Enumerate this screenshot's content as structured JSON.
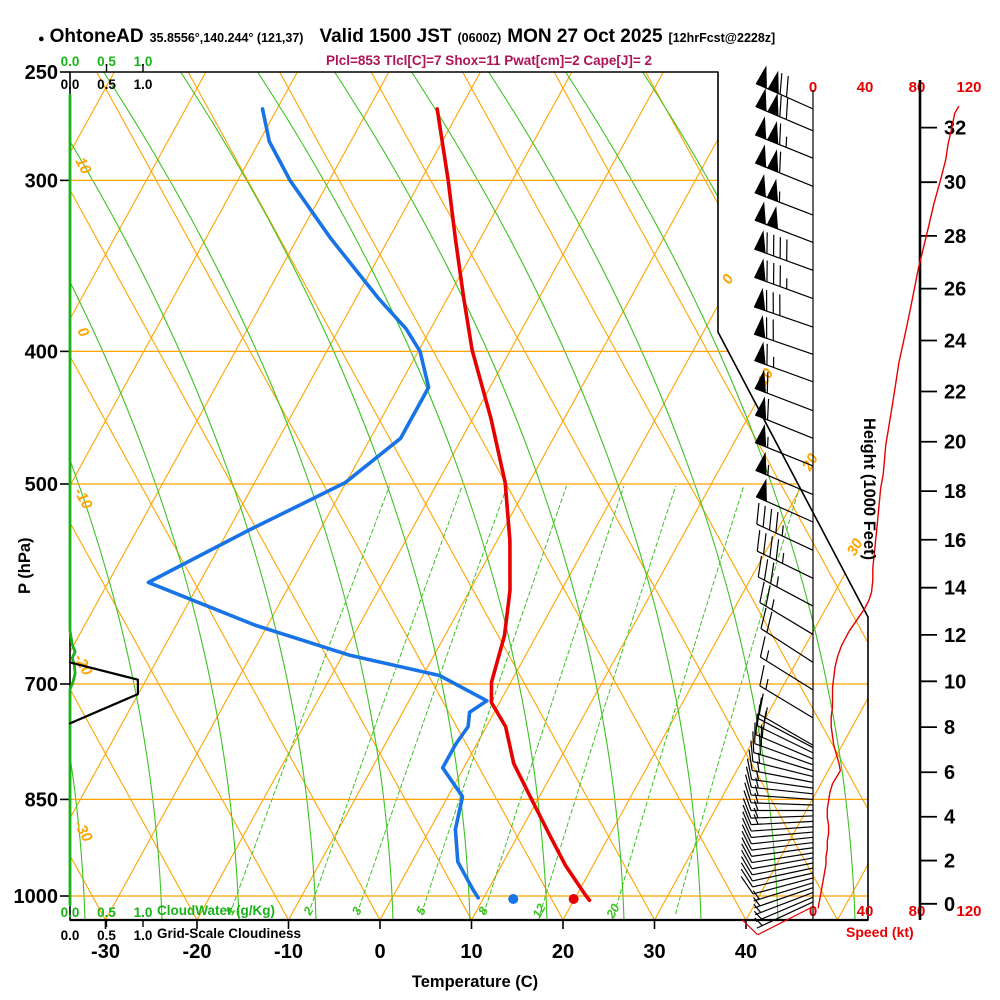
{
  "header": {
    "bullet": "●",
    "station": "OhtoneAD",
    "coords": "35.8556°,140.244° (121,37)",
    "valid": "Valid 1500 JST",
    "valid_z": "(0600Z)",
    "valid_date": "MON 27 Oct 2025",
    "fcst_tag": "[12hrFcst@2228z]",
    "params": "Plcl=853 Tlcl[C]=7 Shox=11 Pwat[cm]=2 Cape[J]= 2"
  },
  "axes": {
    "pressure": {
      "label": "P (hPa)",
      "ticks": [
        250,
        300,
        400,
        500,
        700,
        850,
        1000
      ]
    },
    "temperature": {
      "label": "Temperature (C)",
      "ticks": [
        -30,
        -20,
        -10,
        0,
        10,
        20,
        30,
        40
      ]
    },
    "height": {
      "label": "Height (1000 Feet)",
      "ticks": [
        0,
        2,
        4,
        6,
        8,
        10,
        12,
        14,
        16,
        18,
        20,
        22,
        24,
        26,
        28,
        30,
        32
      ]
    },
    "speed": {
      "label": "Speed (kt)",
      "ticks": [
        0,
        40,
        80,
        120
      ]
    },
    "cloudwater": {
      "label": "CloudWater (g/Kg)",
      "ticks": [
        "0.0",
        "0.5",
        "1.0"
      ]
    },
    "cloudiness": {
      "label": "Grid-Scale Cloudiness",
      "ticks": [
        "0.0",
        "0.5",
        "1.0"
      ]
    }
  },
  "colors": {
    "grid_orange": "#FFA400",
    "grid_green": "#3CC224",
    "temp_red": "#E60000",
    "dew_blue": "#1773E6",
    "params_magenta": "#B01356",
    "cloud_green": "#17B317",
    "black": "#000000"
  },
  "chart_data": {
    "type": "skewt-log-p",
    "pressure_range_hpa": [
      250,
      1040
    ],
    "temperature_ticks_c": [
      -30,
      -20,
      -10,
      0,
      10,
      20,
      30,
      40
    ],
    "isotherm_labels_right_c": [
      0,
      10,
      20,
      30
    ],
    "dry_adiabat_labels_left_c": [
      10,
      0,
      -10,
      -20,
      -30
    ],
    "mixing_ratio_labels_gkg": [
      1,
      2,
      3,
      5,
      8,
      12,
      20
    ],
    "temperature_c": [
      [
        266,
        -42.5
      ],
      [
        300,
        -37.0
      ],
      [
        331,
        -32.7
      ],
      [
        366,
        -28.2
      ],
      [
        399,
        -24.2
      ],
      [
        448,
        -18.0
      ],
      [
        499,
        -12.6
      ],
      [
        550,
        -8.6
      ],
      [
        598,
        -5.6
      ],
      [
        645,
        -3.5
      ],
      [
        698,
        -2.1
      ],
      [
        722,
        -0.9
      ],
      [
        752,
        2.1
      ],
      [
        800,
        5.2
      ],
      [
        846,
        9.0
      ],
      [
        906,
        13.7
      ],
      [
        950,
        17.0
      ],
      [
        999,
        21.0
      ],
      [
        1007,
        21.7
      ]
    ],
    "dewpoint_c": [
      [
        266,
        -61.6
      ],
      [
        281,
        -58.9
      ],
      [
        300,
        -54.3
      ],
      [
        331,
        -46.3
      ],
      [
        366,
        -37.5
      ],
      [
        385,
        -32.7
      ],
      [
        400,
        -29.8
      ],
      [
        425,
        -26.7
      ],
      [
        463,
        -26.7
      ],
      [
        499,
        -30.1
      ],
      [
        540,
        -37.7
      ],
      [
        590,
        -45.6
      ],
      [
        634,
        -31.4
      ],
      [
        667,
        -19.2
      ],
      [
        690,
        -8.2
      ],
      [
        720,
        -1.5
      ],
      [
        734,
        -2.7
      ],
      [
        752,
        -2.0
      ],
      [
        775,
        -2.3
      ],
      [
        806,
        -2.3
      ],
      [
        846,
        1.6
      ],
      [
        894,
        2.8
      ],
      [
        944,
        5.0
      ],
      [
        989,
        8.3
      ],
      [
        1003,
        9.4
      ]
    ],
    "surface_obs": {
      "pressure": 1005,
      "temp_c": 19.9,
      "dewpoint_c": 13.3
    },
    "surface_wind": {
      "pressure": 1018,
      "dir_deg": 243,
      "speed_kt": 8
    },
    "wind_levels": [
      [
        1010,
        245,
        5
      ],
      [
        1002,
        247,
        6
      ],
      [
        994,
        249,
        6
      ],
      [
        986,
        251,
        7
      ],
      [
        978,
        253,
        7
      ],
      [
        970,
        255,
        8
      ],
      [
        962,
        257,
        8
      ],
      [
        954,
        258,
        9
      ],
      [
        946,
        259,
        9
      ],
      [
        938,
        260,
        10
      ],
      [
        930,
        261,
        10
      ],
      [
        922,
        262,
        11
      ],
      [
        914,
        263,
        11
      ],
      [
        906,
        264,
        11
      ],
      [
        898,
        265,
        12
      ],
      [
        890,
        266,
        12
      ],
      [
        882,
        267,
        13
      ],
      [
        874,
        268,
        13
      ],
      [
        866,
        270,
        13
      ],
      [
        858,
        272,
        14
      ],
      [
        850,
        274,
        14
      ],
      [
        842,
        276,
        15
      ],
      [
        834,
        278,
        15
      ],
      [
        826,
        281,
        16
      ],
      [
        818,
        284,
        17
      ],
      [
        810,
        287,
        18
      ],
      [
        802,
        290,
        18
      ],
      [
        794,
        293,
        17
      ],
      [
        786,
        296,
        16
      ],
      [
        779,
        298,
        15
      ],
      [
        776,
        300,
        15
      ],
      [
        741,
        301,
        15
      ],
      [
        707,
        302,
        16
      ],
      [
        675,
        303,
        20
      ],
      [
        644,
        301,
        26
      ],
      [
        614,
        298,
        36
      ],
      [
        586,
        296,
        44
      ],
      [
        559,
        295,
        47
      ],
      [
        533,
        294,
        50
      ],
      [
        509,
        293,
        53
      ],
      [
        485,
        292,
        56
      ],
      [
        463,
        292,
        58
      ],
      [
        442,
        291,
        62
      ],
      [
        421,
        290,
        66
      ],
      [
        402,
        289,
        72
      ],
      [
        384,
        289,
        78
      ],
      [
        366,
        290,
        85
      ],
      [
        349,
        290,
        92
      ],
      [
        333,
        291,
        99
      ],
      [
        318,
        291,
        104
      ],
      [
        303,
        292,
        110
      ],
      [
        289,
        292,
        114
      ],
      [
        276,
        293,
        118
      ],
      [
        266,
        294,
        120
      ]
    ],
    "wind_speed_profile_kt": [
      [
        1020,
        4
      ],
      [
        1008,
        5
      ],
      [
        996,
        6
      ],
      [
        984,
        7
      ],
      [
        972,
        8
      ],
      [
        960,
        9
      ],
      [
        948,
        10
      ],
      [
        936,
        10
      ],
      [
        924,
        11
      ],
      [
        912,
        11
      ],
      [
        900,
        12
      ],
      [
        888,
        12
      ],
      [
        876,
        11
      ],
      [
        864,
        11
      ],
      [
        852,
        12
      ],
      [
        840,
        13
      ],
      [
        828,
        15
      ],
      [
        816,
        19
      ],
      [
        810,
        21
      ],
      [
        800,
        20
      ],
      [
        788,
        18
      ],
      [
        776,
        16
      ],
      [
        764,
        15
      ],
      [
        752,
        14
      ],
      [
        740,
        14
      ],
      [
        728,
        15
      ],
      [
        716,
        15
      ],
      [
        704,
        15
      ],
      [
        692,
        16
      ],
      [
        680,
        17
      ],
      [
        668,
        19
      ],
      [
        656,
        22
      ],
      [
        648,
        25
      ],
      [
        640,
        28
      ],
      [
        632,
        32
      ],
      [
        624,
        36
      ],
      [
        616,
        40
      ],
      [
        608,
        43
      ],
      [
        600,
        45
      ],
      [
        588,
        46
      ],
      [
        576,
        46
      ],
      [
        564,
        47
      ],
      [
        552,
        48
      ],
      [
        540,
        49
      ],
      [
        528,
        50
      ],
      [
        516,
        51
      ],
      [
        504,
        52
      ],
      [
        492,
        54
      ],
      [
        480,
        55
      ],
      [
        468,
        56
      ],
      [
        456,
        58
      ],
      [
        444,
        60
      ],
      [
        432,
        62
      ],
      [
        420,
        64
      ],
      [
        408,
        66
      ],
      [
        396,
        69
      ],
      [
        384,
        72
      ],
      [
        372,
        75
      ],
      [
        360,
        78
      ],
      [
        348,
        81
      ],
      [
        336,
        85
      ],
      [
        324,
        89
      ],
      [
        312,
        93
      ],
      [
        300,
        98
      ],
      [
        290,
        102
      ],
      [
        282,
        104
      ],
      [
        274,
        107
      ],
      [
        268,
        109
      ],
      [
        265,
        112
      ]
    ],
    "cloud_water_gkg_scaled": [
      [
        260,
        0
      ],
      [
        640,
        0
      ],
      [
        655,
        0.03
      ],
      [
        663,
        0.07
      ],
      [
        670,
        0.03
      ],
      [
        678,
        0.06
      ],
      [
        688,
        0.07
      ],
      [
        698,
        0.04
      ],
      [
        706,
        0
      ],
      [
        1015,
        0
      ]
    ],
    "grid_scale_cloudiness": [
      [
        675,
        0
      ],
      [
        695,
        0.93
      ],
      [
        712,
        0.93
      ],
      [
        748,
        0
      ]
    ]
  }
}
